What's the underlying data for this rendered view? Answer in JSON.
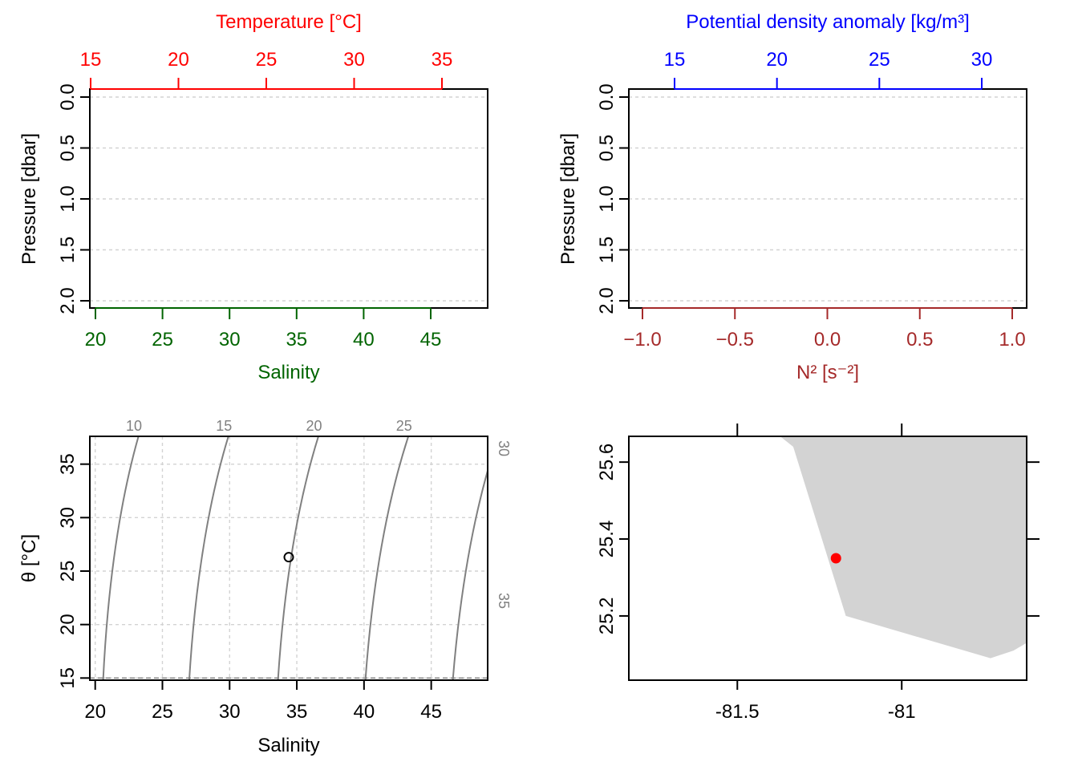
{
  "chart_data": [
    {
      "type": "line",
      "panel": "pressure-profile-temperature-salinity",
      "series": [],
      "top_axis": {
        "label": "Temperature [°C]",
        "ticks": [
          15,
          20,
          25,
          30,
          35
        ],
        "range": [
          15,
          37.6
        ],
        "color": "#ff0000"
      },
      "bottom_axis": {
        "label": "Salinity",
        "ticks": [
          20,
          25,
          30,
          35,
          40,
          45
        ],
        "range": [
          19.6,
          49.2
        ],
        "color": "#006400"
      },
      "y_axis": {
        "label": "Pressure [dbar]",
        "ticks": [
          "0.0",
          "0.5",
          "1.0",
          "1.5",
          "2.0"
        ],
        "range": [
          0,
          2
        ],
        "reversed": true
      },
      "grid": "horizontal-dashed"
    },
    {
      "type": "line",
      "panel": "pressure-profile-density-n2",
      "series": [],
      "top_axis": {
        "label": "Potential density anomaly [kg/m³]",
        "ticks": [
          15,
          20,
          25,
          30
        ],
        "range": [
          12.7,
          32.2
        ],
        "color": "#0000ff"
      },
      "bottom_axis": {
        "label": "N² [s⁻²]",
        "ticks": [
          "−1.0",
          "−0.5",
          "0.0",
          "0.5",
          "1.0"
        ],
        "range": [
          -1.08,
          1.08
        ],
        "color": "#a52a2a"
      },
      "y_axis": {
        "label": "Pressure [dbar]",
        "ticks": [
          "0.0",
          "0.5",
          "1.0",
          "1.5",
          "2.0"
        ],
        "range": [
          0,
          2
        ],
        "reversed": true
      },
      "grid": "horizontal-dashed"
    },
    {
      "type": "scatter",
      "panel": "ts-diagram",
      "xlabel": "Salinity",
      "ylabel": "θ [°C]",
      "x_ticks": [
        20,
        25,
        30,
        35,
        40,
        45
      ],
      "y_ticks": [
        15,
        20,
        25,
        30,
        35
      ],
      "xlim": [
        19.6,
        49.2
      ],
      "ylim": [
        14.8,
        37.6
      ],
      "points": [
        {
          "x": 34.4,
          "y": 26.3
        }
      ],
      "isopycnals": [
        {
          "label": "10",
          "x_bottom": 20.8,
          "x_top": 23.0
        },
        {
          "label": "15",
          "x_bottom": 27.2,
          "x_top": 29.7
        },
        {
          "label": "20",
          "x_bottom": 33.8,
          "x_top": 36.4
        },
        {
          "label": "25",
          "x_bottom": 40.3,
          "x_top": 43.1
        },
        {
          "label": "30",
          "x_bottom": 46.8,
          "x_top": 49.8
        },
        {
          "label": "35",
          "x_bottom": 53.3,
          "x_top": 56.5
        }
      ],
      "grid": "dashed"
    },
    {
      "type": "scatter",
      "panel": "station-map",
      "x_ticks": [
        "-81.5",
        "-81"
      ],
      "y_ticks": [
        "25.2",
        "25.4",
        "25.6"
      ],
      "xlim": [
        -81.83,
        -80.62
      ],
      "ylim": [
        25.033,
        25.667
      ],
      "station": {
        "lon": -81.2,
        "lat": 25.35
      },
      "land_polygon": [
        [
          -81.37,
          25.667
        ],
        [
          -81.33,
          25.64
        ],
        [
          -81.17,
          25.2
        ],
        [
          -80.73,
          25.09
        ],
        [
          -80.66,
          25.11
        ],
        [
          -80.62,
          25.13
        ],
        [
          -80.62,
          25.667
        ]
      ],
      "colors": {
        "land": "#d3d3d3",
        "station": "#ff0000"
      }
    }
  ]
}
